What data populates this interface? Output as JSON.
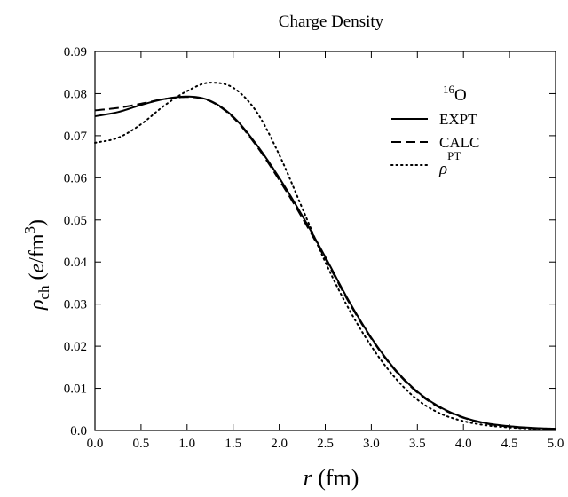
{
  "chart_data": {
    "type": "line",
    "title": "Charge Density",
    "xlabel": {
      "symbol": "r",
      "unit": " (fm)"
    },
    "ylabel": {
      "symbol": "ρ",
      "subscript": "ch",
      "open": " (",
      "e": "e",
      "unit": "/fm",
      "power": "3",
      "close": ")"
    },
    "xlim": [
      0.0,
      5.0
    ],
    "ylim": [
      0.0,
      0.09
    ],
    "x_ticks": [
      "0.0",
      "0.5",
      "1.0",
      "1.5",
      "2.0",
      "2.5",
      "3.0",
      "3.5",
      "4.0",
      "4.5",
      "5.0"
    ],
    "y_ticks": [
      "0.0",
      "0.01",
      "0.02",
      "0.03",
      "0.04",
      "0.05",
      "0.06",
      "0.07",
      "0.08",
      "0.09"
    ],
    "grid": false,
    "legend": {
      "placement": "top-right",
      "header": {
        "mass": "16",
        "element": "O"
      },
      "entries": [
        {
          "key": "expt",
          "label": "EXPT",
          "style": "solid"
        },
        {
          "key": "calc",
          "label": "CALC",
          "style": "dashed"
        },
        {
          "key": "pt",
          "label": "ρ",
          "superscript": "PT",
          "style": "dotted"
        }
      ]
    },
    "series": [
      {
        "key": "expt",
        "name": "EXPT",
        "style": "solid",
        "x": [
          0,
          0.25,
          0.5,
          0.75,
          1.0,
          1.25,
          1.5,
          1.75,
          2.0,
          2.25,
          2.5,
          2.75,
          3.0,
          3.25,
          3.5,
          3.75,
          4.0,
          4.25,
          4.5,
          4.75,
          5.0
        ],
        "y": [
          0.0746,
          0.0756,
          0.0773,
          0.0787,
          0.0793,
          0.0783,
          0.0745,
          0.068,
          0.06,
          0.051,
          0.0412,
          0.031,
          0.022,
          0.0147,
          0.0092,
          0.0055,
          0.0031,
          0.0017,
          0.001,
          0.0006,
          0.0004
        ]
      },
      {
        "key": "calc",
        "name": "CALC",
        "style": "dashed",
        "x": [
          0,
          0.25,
          0.5,
          0.75,
          1.0,
          1.25,
          1.5,
          1.75,
          2.0,
          2.25,
          2.5,
          2.75,
          3.0,
          3.25,
          3.5,
          3.75,
          4.0,
          4.25,
          4.5,
          4.75,
          5.0
        ],
        "y": [
          0.076,
          0.0766,
          0.0776,
          0.0787,
          0.0792,
          0.0782,
          0.0743,
          0.0677,
          0.0595,
          0.0505,
          0.0408,
          0.0307,
          0.0218,
          0.0145,
          0.009,
          0.0053,
          0.003,
          0.0016,
          0.0009,
          0.0005,
          0.0003
        ]
      },
      {
        "key": "pt",
        "name": "ρPT",
        "style": "dotted",
        "x": [
          0,
          0.25,
          0.5,
          0.75,
          1.0,
          1.25,
          1.5,
          1.75,
          2.0,
          2.25,
          2.5,
          2.75,
          3.0,
          3.25,
          3.5,
          3.75,
          4.0,
          4.25,
          4.5,
          4.75,
          5.0
        ],
        "y": [
          0.0683,
          0.0695,
          0.0727,
          0.0771,
          0.0806,
          0.0826,
          0.0814,
          0.0758,
          0.0655,
          0.0528,
          0.04,
          0.0291,
          0.02,
          0.0127,
          0.0073,
          0.004,
          0.0022,
          0.0012,
          0.0007,
          0.0004,
          0.0002
        ]
      }
    ]
  }
}
